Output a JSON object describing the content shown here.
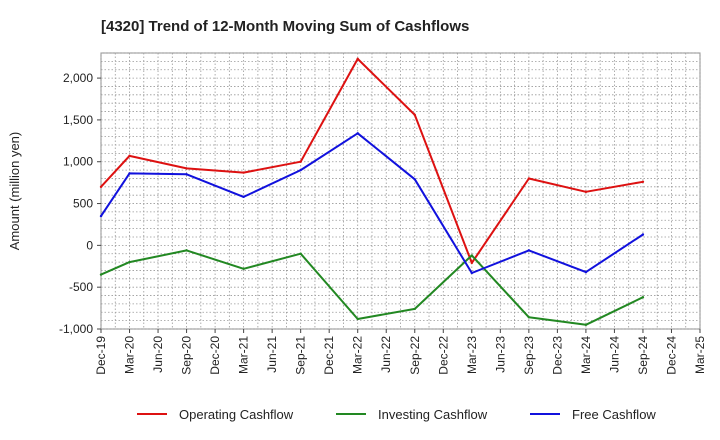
{
  "chart_data": {
    "type": "line",
    "title": "[4320]  Trend of 12-Month Moving Sum of Cashflows",
    "ylabel": "Amount (million yen)",
    "xlabel": "",
    "categories": [
      "Dec-19",
      "Mar-20",
      "Jun-20",
      "Sep-20",
      "Dec-20",
      "Mar-21",
      "Jun-21",
      "Sep-21",
      "Dec-21",
      "Mar-22",
      "Jun-22",
      "Sep-22",
      "Dec-22",
      "Mar-23",
      "Jun-23",
      "Sep-23",
      "Dec-23",
      "Mar-24",
      "Jun-24",
      "Sep-24",
      "Dec-24",
      "Mar-25"
    ],
    "yticks": [
      "2,000",
      "1,500",
      "1,000",
      "500",
      "0",
      "-500",
      "-1,000"
    ],
    "ytick_values": [
      2000,
      1500,
      1000,
      500,
      0,
      -500,
      -1000
    ],
    "ylim": [
      -1000,
      2300
    ],
    "grid": "dotted",
    "legend": "bottom",
    "series": [
      {
        "name": "Operating Cashflow",
        "color": "#dd1111",
        "values": [
          700,
          1070,
          null,
          920,
          null,
          870,
          null,
          1000,
          null,
          2230,
          null,
          1560,
          null,
          -210,
          null,
          800,
          null,
          640,
          null,
          760,
          null,
          null
        ]
      },
      {
        "name": "Investing Cashflow",
        "color": "#228822",
        "values": [
          -350,
          -200,
          null,
          -60,
          null,
          -280,
          null,
          -100,
          null,
          -880,
          null,
          -760,
          null,
          -120,
          null,
          -860,
          null,
          -950,
          null,
          -620,
          null,
          null
        ]
      },
      {
        "name": "Free Cashflow",
        "color": "#1111dd",
        "values": [
          350,
          860,
          null,
          850,
          null,
          580,
          null,
          900,
          null,
          1340,
          null,
          790,
          null,
          -330,
          null,
          -60,
          null,
          -320,
          null,
          130,
          null,
          null
        ]
      }
    ]
  }
}
